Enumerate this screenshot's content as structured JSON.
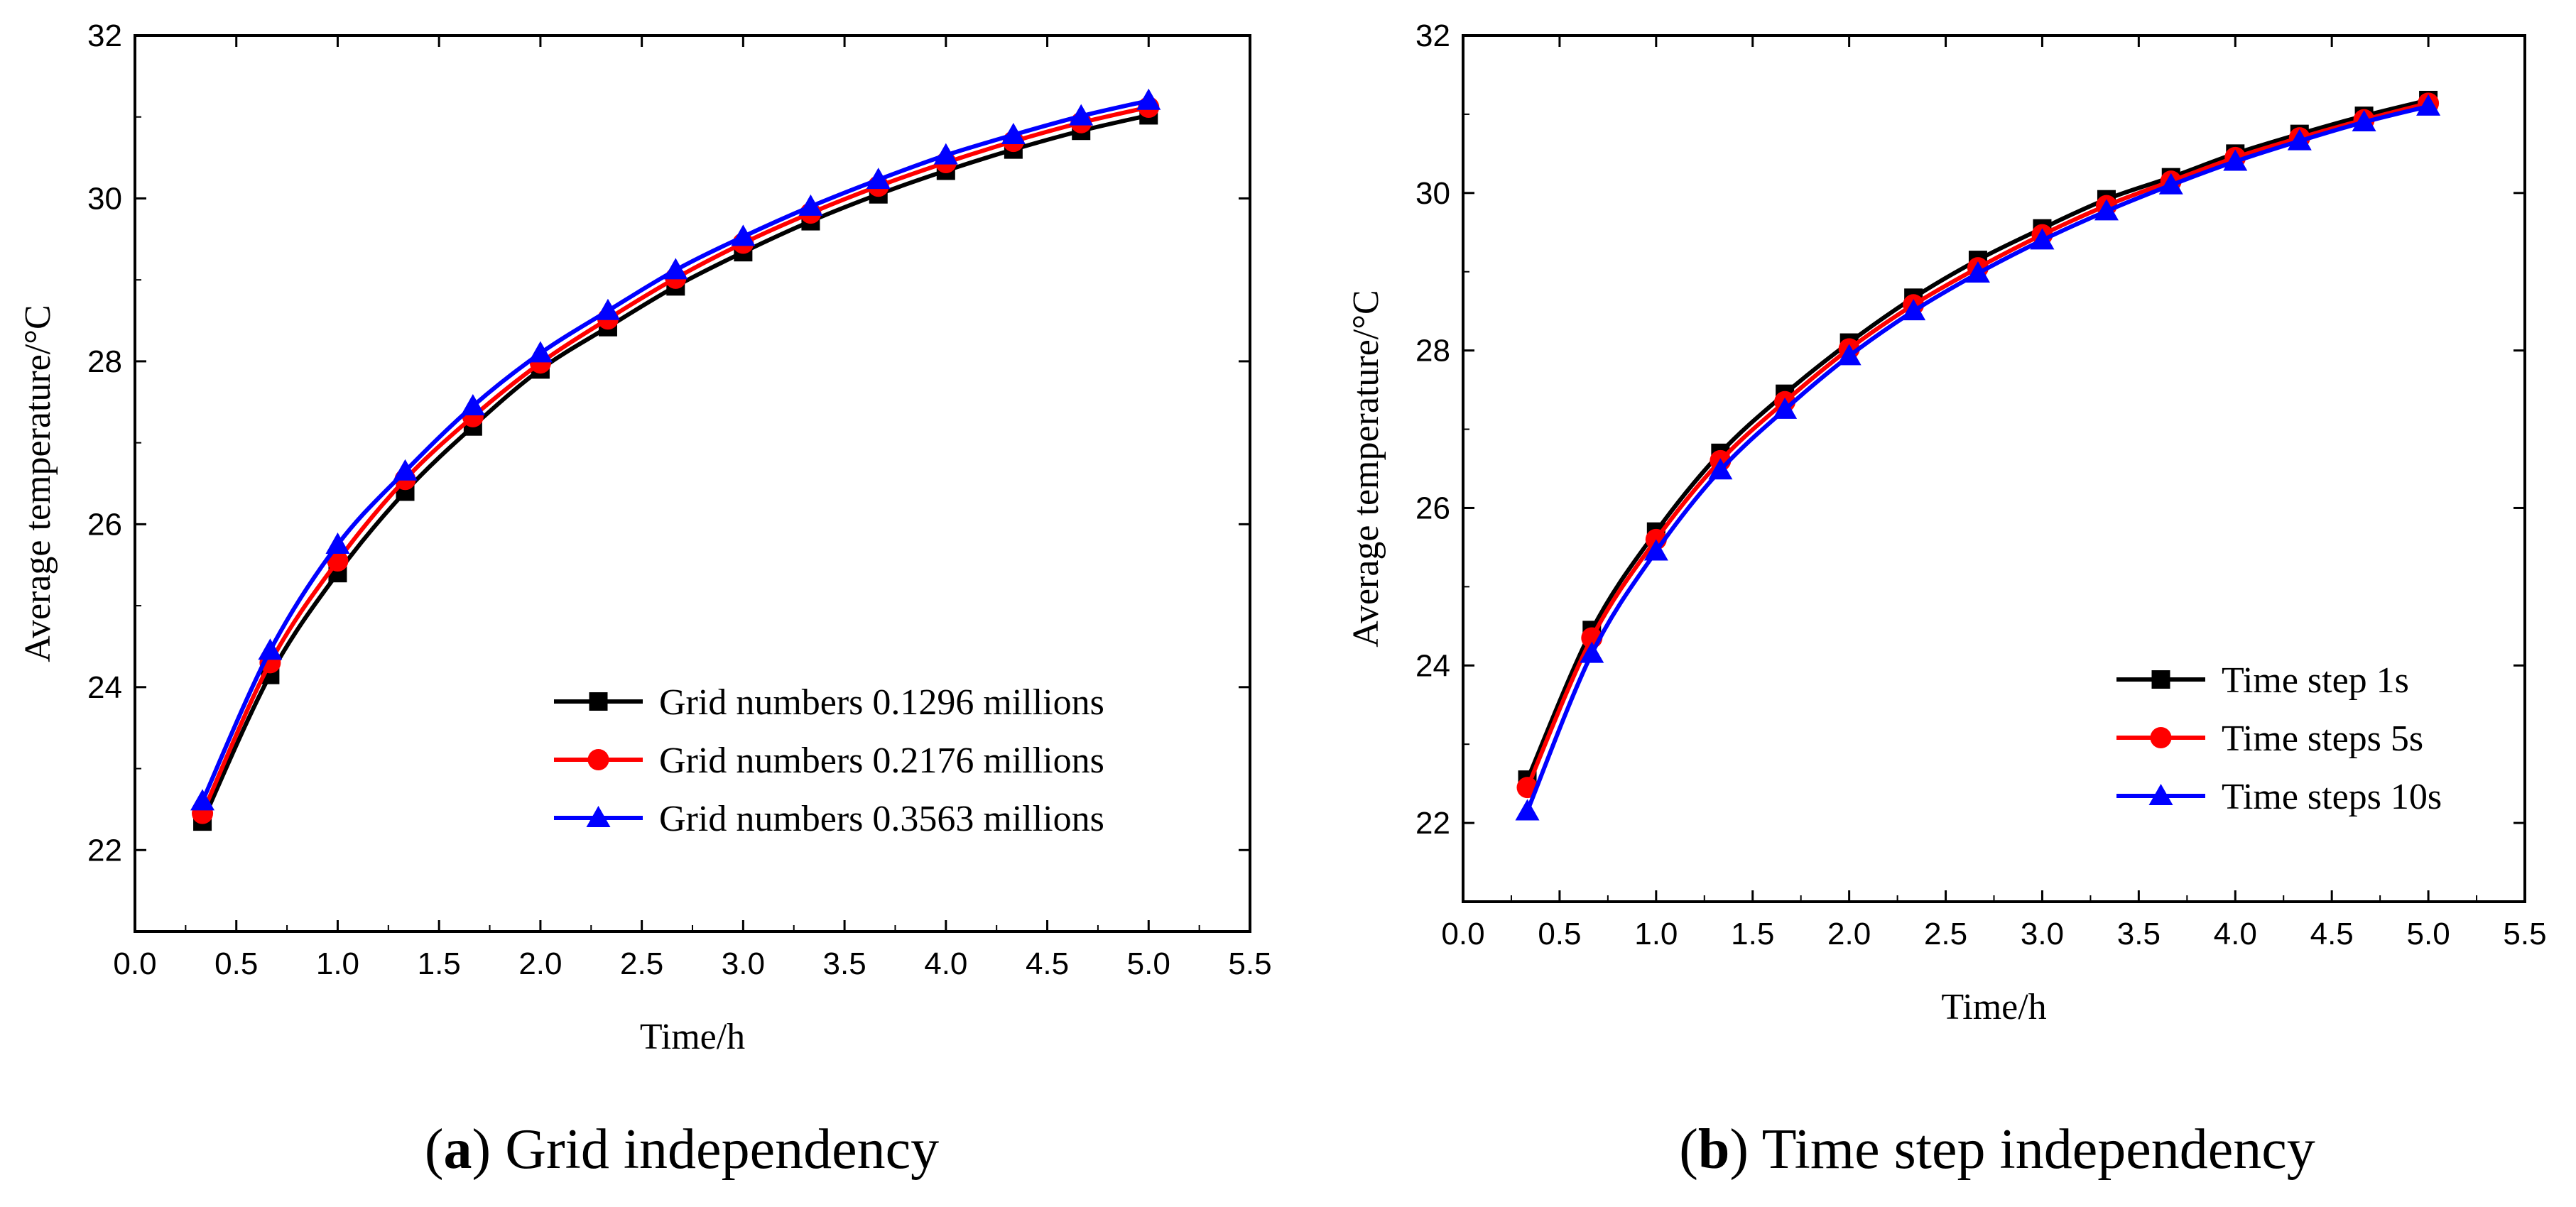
{
  "chart_data": [
    {
      "id": "a",
      "type": "line",
      "caption_letter": "a",
      "caption_paren_open": "(",
      "caption_paren_close": ")",
      "caption_text": " Grid independency",
      "xlabel": "Time/h",
      "ylabel": "Average temperature/°C",
      "xlim": [
        0,
        5.5
      ],
      "ylim": [
        21,
        32
      ],
      "xticks": [
        "0.0",
        "0.5",
        "1.0",
        "1.5",
        "2.0",
        "2.5",
        "3.0",
        "3.5",
        "4.0",
        "4.5",
        "5.0",
        "5.5"
      ],
      "yticks": [
        "22",
        "24",
        "26",
        "28",
        "30",
        "32"
      ],
      "legend_position": "bottom-right",
      "x": [
        0.333,
        0.667,
        1.0,
        1.333,
        1.667,
        2.0,
        2.333,
        2.667,
        3.0,
        3.333,
        3.667,
        4.0,
        4.333,
        4.667,
        5.0
      ],
      "series": [
        {
          "name": "Grid numbers 0.1296 millions",
          "color": "#000000",
          "marker": "square",
          "values": [
            22.35,
            24.15,
            25.4,
            26.4,
            27.2,
            27.9,
            28.42,
            28.92,
            29.34,
            29.72,
            30.05,
            30.34,
            30.6,
            30.83,
            31.02
          ]
        },
        {
          "name": "Grid numbers 0.2176 millions",
          "color": "#ff0000",
          "marker": "circle",
          "values": [
            22.45,
            24.3,
            25.55,
            26.55,
            27.32,
            27.98,
            28.52,
            29.02,
            29.45,
            29.82,
            30.15,
            30.44,
            30.7,
            30.93,
            31.12
          ]
        },
        {
          "name": "Grid numbers 0.3563 millions",
          "color": "#0000ff",
          "marker": "triangle",
          "values": [
            22.6,
            24.45,
            25.75,
            26.65,
            27.45,
            28.1,
            28.62,
            29.12,
            29.53,
            29.9,
            30.23,
            30.53,
            30.78,
            31.01,
            31.2
          ]
        }
      ]
    },
    {
      "id": "b",
      "type": "line",
      "caption_letter": "b",
      "caption_paren_open": "(",
      "caption_paren_close": ")",
      "caption_text": " Time step independency",
      "xlabel": "Time/h",
      "ylabel": "Average temperature/°C",
      "xlim": [
        0,
        5.5
      ],
      "ylim": [
        21,
        32
      ],
      "xticks": [
        "0.0",
        "0.5",
        "1.0",
        "1.5",
        "2.0",
        "2.5",
        "3.0",
        "3.5",
        "4.0",
        "4.5",
        "5.0",
        "5.5"
      ],
      "yticks": [
        "22",
        "24",
        "26",
        "28",
        "30",
        "32"
      ],
      "legend_position": "right",
      "x": [
        0.333,
        0.667,
        1.0,
        1.333,
        1.667,
        2.0,
        2.333,
        2.667,
        3.0,
        3.333,
        3.667,
        4.0,
        4.333,
        4.667,
        5.0
      ],
      "series": [
        {
          "name": "Time step 1s",
          "color": "#000000",
          "marker": "square",
          "values": [
            22.55,
            24.45,
            25.7,
            26.7,
            27.45,
            28.1,
            28.67,
            29.15,
            29.55,
            29.92,
            30.2,
            30.5,
            30.75,
            30.98,
            31.18
          ]
        },
        {
          "name": "Time steps 5s",
          "color": "#ff0000",
          "marker": "circle",
          "values": [
            22.45,
            24.35,
            25.6,
            26.6,
            27.35,
            28.02,
            28.58,
            29.05,
            29.47,
            29.84,
            30.15,
            30.45,
            30.7,
            30.93,
            31.14
          ]
        },
        {
          "name": "Time steps 10s",
          "color": "#0000ff",
          "marker": "triangle",
          "values": [
            22.15,
            24.15,
            25.45,
            26.48,
            27.25,
            27.93,
            28.5,
            28.98,
            29.4,
            29.77,
            30.1,
            30.4,
            30.66,
            30.9,
            31.1
          ]
        }
      ]
    }
  ]
}
